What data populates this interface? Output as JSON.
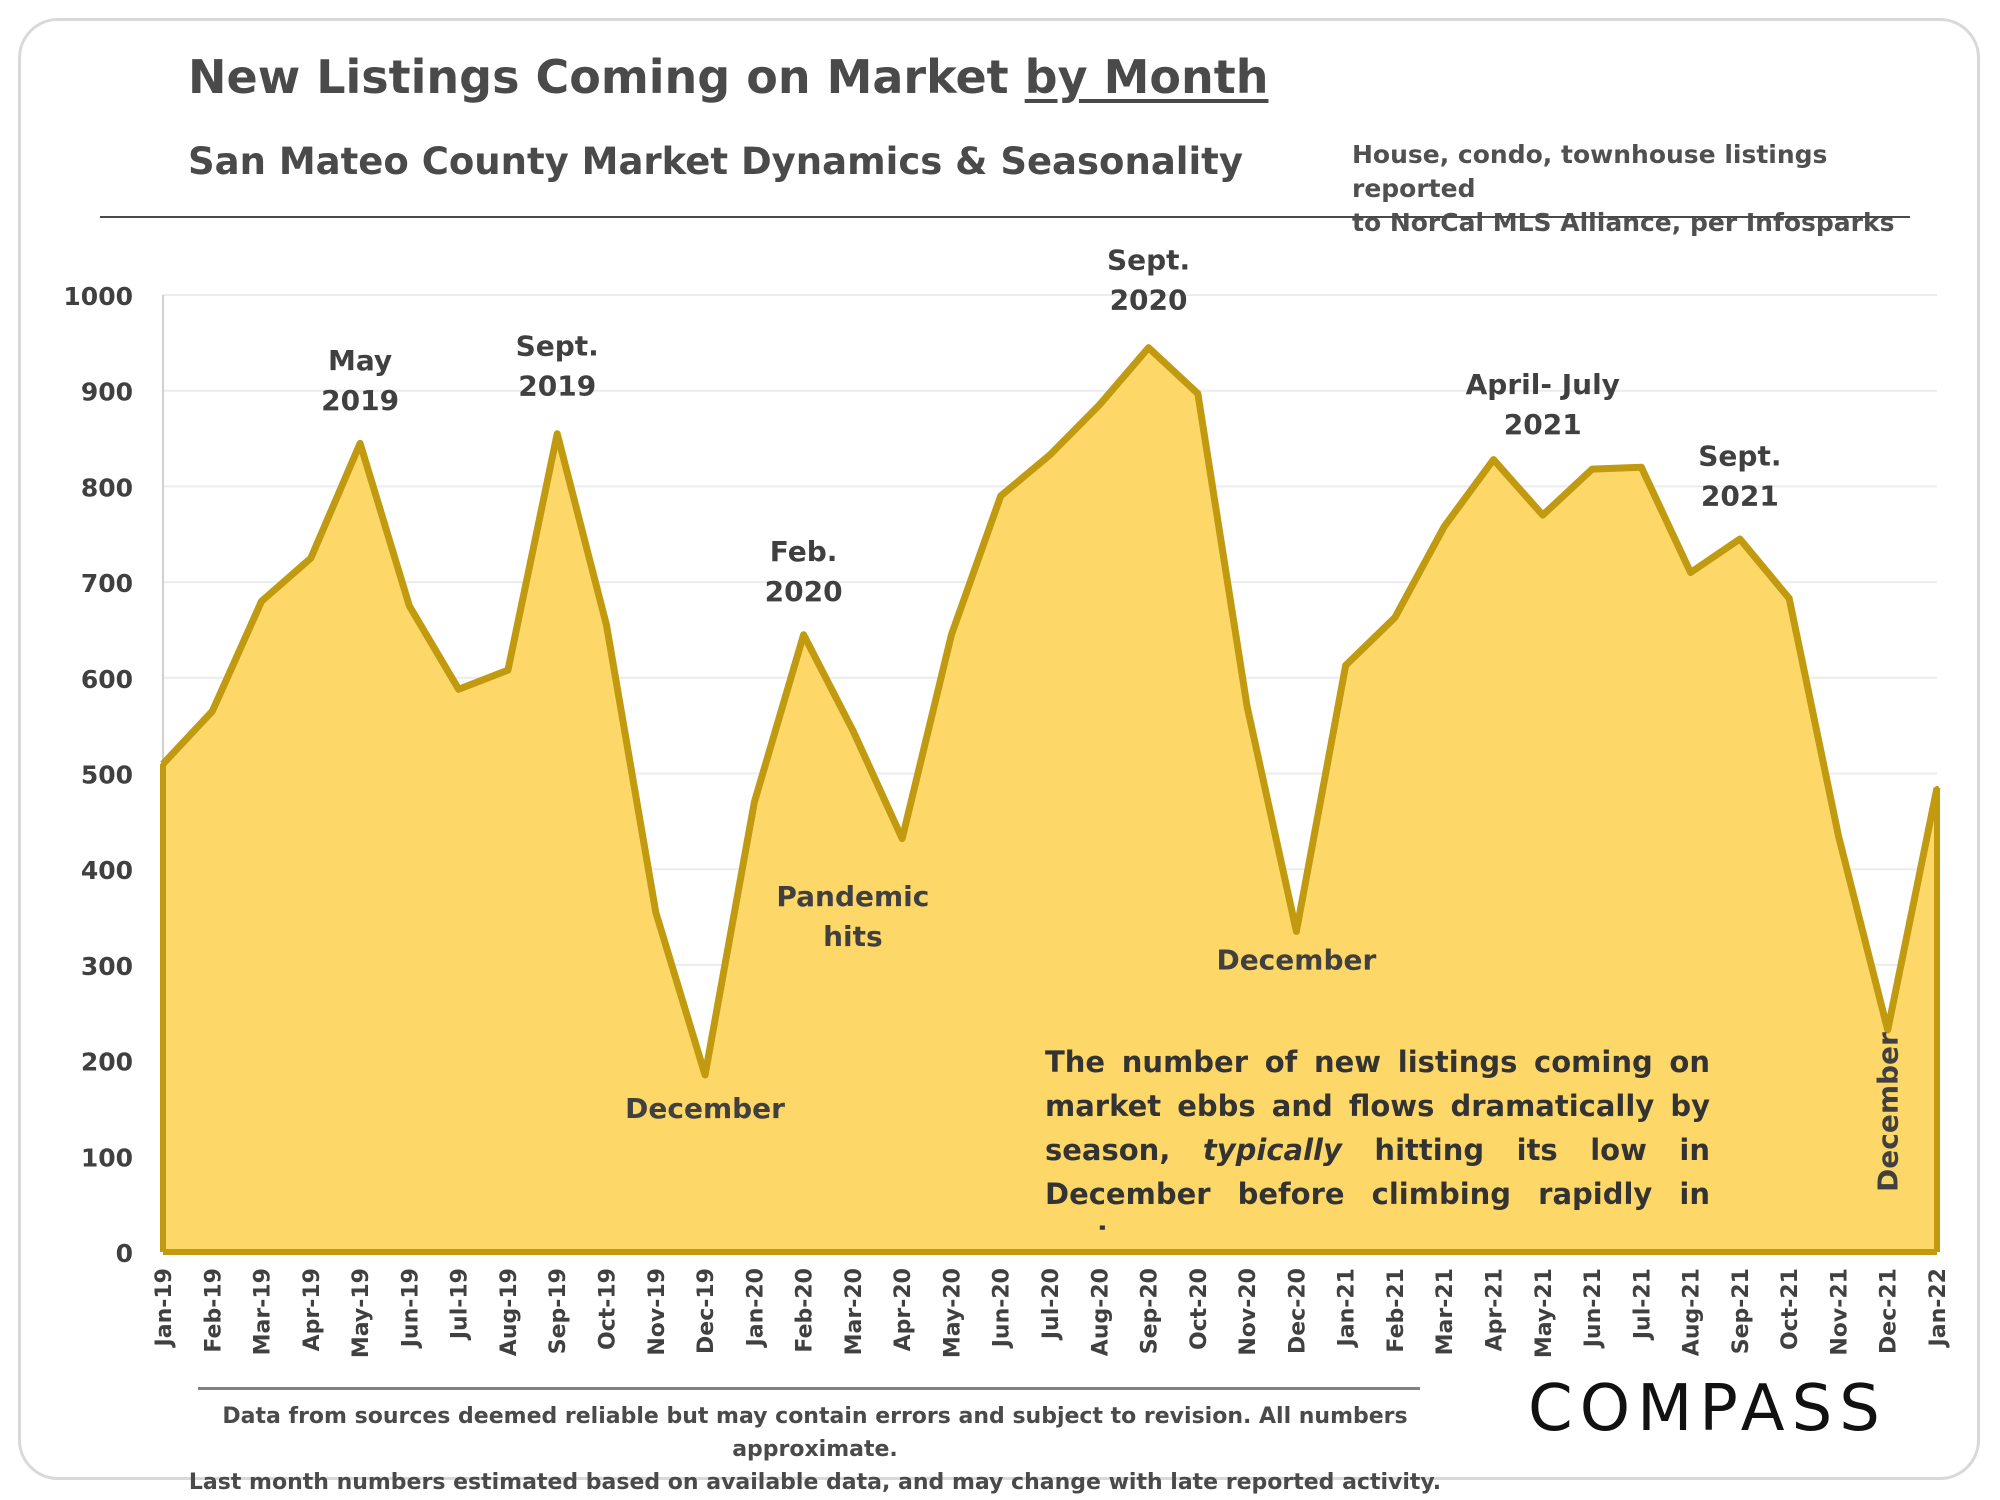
{
  "header": {
    "title_main": "New Listings Coming on Market ",
    "title_underlined": "by Month",
    "subtitle": "San Mateo County Market Dynamics & Seasonality",
    "source_line1": "House, condo, townhouse listings reported",
    "source_line2": "to NorCal MLS Alliance, per Infosparks"
  },
  "footer": {
    "line1": "Data from sources deemed reliable but may contain errors and subject to revision. All numbers approximate.",
    "line2": "Last month numbers estimated based on available data, and may change with late reported activity.",
    "logo": "COMPASS"
  },
  "chart_data": {
    "type": "area",
    "title": "New Listings Coming on Market by Month",
    "subtitle": "San Mateo County Market Dynamics & Seasonality",
    "x": [
      "Jan-19",
      "Feb-19",
      "Mar-19",
      "Apr-19",
      "May-19",
      "Jun-19",
      "Jul-19",
      "Aug-19",
      "Sep-19",
      "Oct-19",
      "Nov-19",
      "Dec-19",
      "Jan-20",
      "Feb-20",
      "Mar-20",
      "Apr-20",
      "May-20",
      "Jun-20",
      "Jul-20",
      "Aug-20",
      "Sep-20",
      "Oct-20",
      "Nov-20",
      "Dec-20",
      "Jan-21",
      "Feb-21",
      "Mar-21",
      "Apr-21",
      "May-21",
      "Jun-21",
      "Jul-21",
      "Aug-21",
      "Sep-21",
      "Oct-21",
      "Nov-21",
      "Dec-21",
      "Jan-22"
    ],
    "values": [
      510,
      565,
      680,
      725,
      845,
      675,
      588,
      608,
      855,
      655,
      355,
      185,
      470,
      645,
      545,
      432,
      645,
      790,
      833,
      885,
      945,
      897,
      570,
      335,
      613,
      663,
      758,
      828,
      770,
      818,
      820,
      710,
      745,
      683,
      435,
      232,
      485
    ],
    "ylim": [
      0,
      1000
    ],
    "yticks": [
      0,
      100,
      200,
      300,
      400,
      500,
      600,
      700,
      800,
      900,
      1000
    ],
    "grid": true,
    "legend": "none",
    "colors": {
      "fill": "#fdd868",
      "line": "#c19a10",
      "grid": "#ececec",
      "axis": "#d0d0d0"
    },
    "annotations": [
      {
        "text": [
          "May",
          "2019"
        ],
        "x": "May-19",
        "y": 880
      },
      {
        "text": [
          "Sept.",
          "2019"
        ],
        "x": "Sep-19",
        "y": 895
      },
      {
        "text": [
          "December"
        ],
        "x": "Dec-19",
        "y": 140
      },
      {
        "text": [
          "Feb.",
          "2020"
        ],
        "x": "Feb-20",
        "y": 680
      },
      {
        "text": [
          "Pandemic",
          "hits"
        ],
        "x": "Mar-20",
        "y": 320
      },
      {
        "text": [
          "Sept.",
          "2020"
        ],
        "x": "Sep-20",
        "y": 985
      },
      {
        "text": [
          "December"
        ],
        "x": "Dec-20",
        "y": 295
      },
      {
        "text": [
          "April- July",
          "2021"
        ],
        "x": "May-21",
        "y": 855
      },
      {
        "text": [
          "Sept.",
          "2021"
        ],
        "x": "Sep-21",
        "y": 780
      }
    ],
    "vertical_annotation": {
      "text": "December",
      "x": "Dec-21"
    },
    "note": {
      "part1": "The number of new listings coming on market ebbs and flows dramatically by season, ",
      "emphasis": "typically",
      "part2": " hitting its low in December before climbing rapidly in spring."
    }
  }
}
